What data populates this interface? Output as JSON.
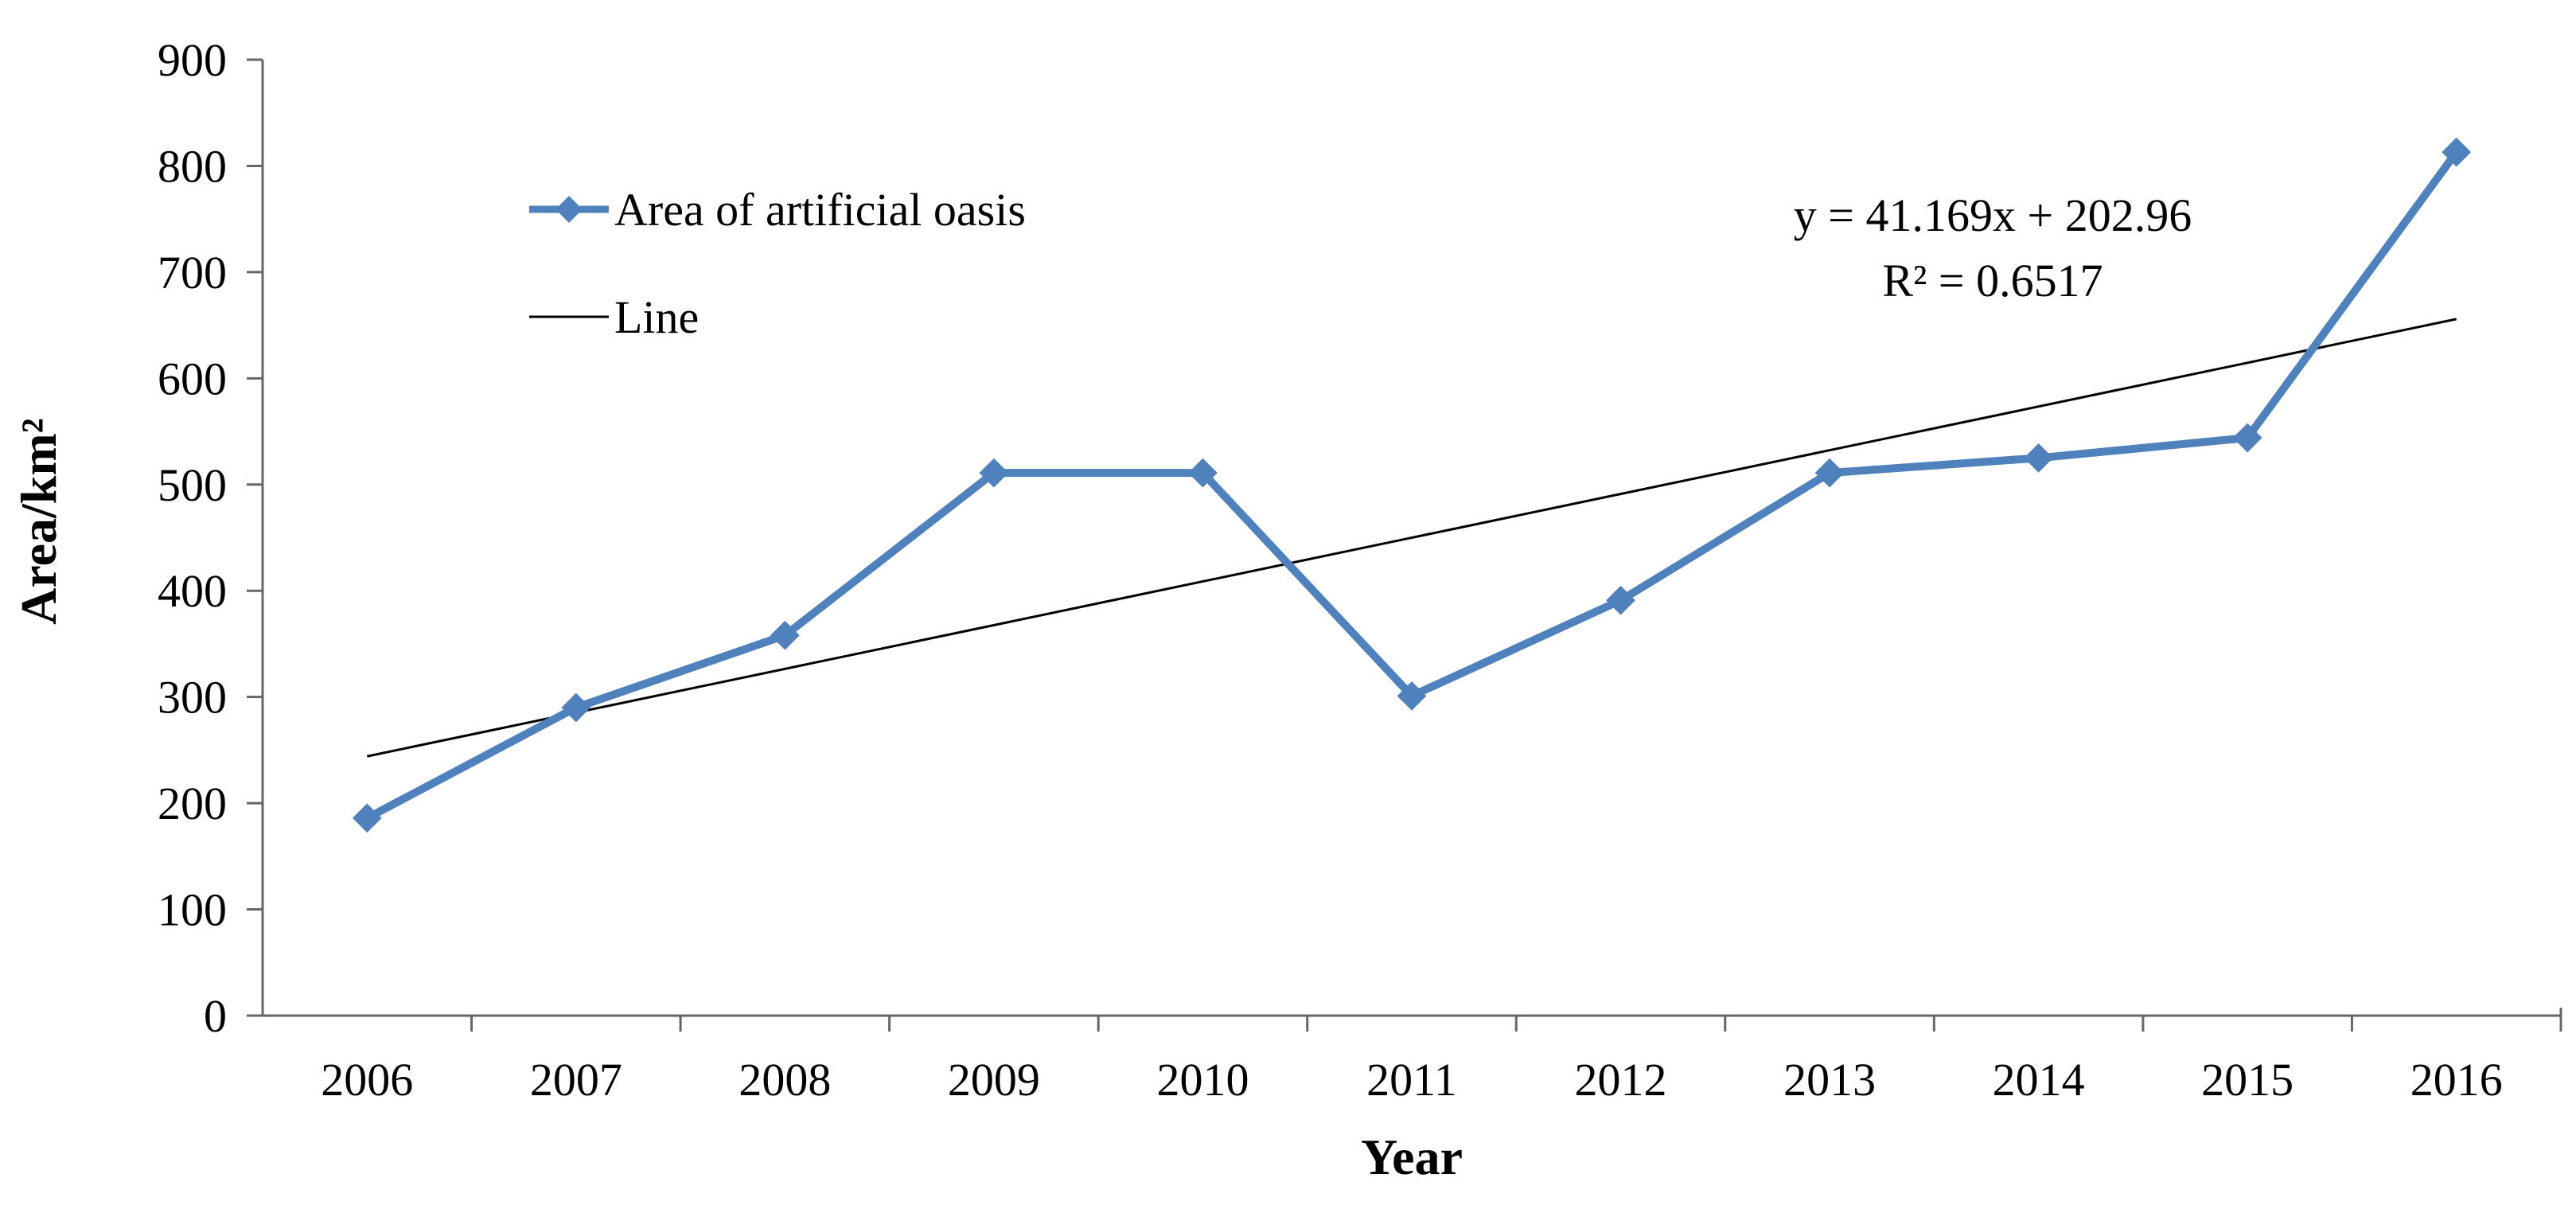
{
  "chart_data": {
    "type": "line",
    "title": "",
    "xlabel": "Year",
    "ylabel": "Area/km²",
    "categories": [
      "2006",
      "2007",
      "2008",
      "2009",
      "2010",
      "2011",
      "2012",
      "2013",
      "2014",
      "2015",
      "2016"
    ],
    "series": [
      {
        "name": "Area of artificial oasis",
        "color": "#4f81bd",
        "marker": "diamond",
        "values": [
          186,
          290,
          358,
          511,
          511,
          301,
          391,
          511,
          525,
          544,
          813
        ]
      }
    ],
    "trendline": {
      "name": "Line",
      "color": "#000000",
      "slope": 41.169,
      "intercept": 202.96,
      "equation": "y = 41.169x + 202.96",
      "r_squared": "R² = 0.6517"
    },
    "ylim": [
      0,
      900
    ],
    "yticks": [
      "0",
      "100",
      "200",
      "300",
      "400",
      "500",
      "600",
      "700",
      "800",
      "900"
    ],
    "grid": false,
    "legend": "top-left"
  }
}
